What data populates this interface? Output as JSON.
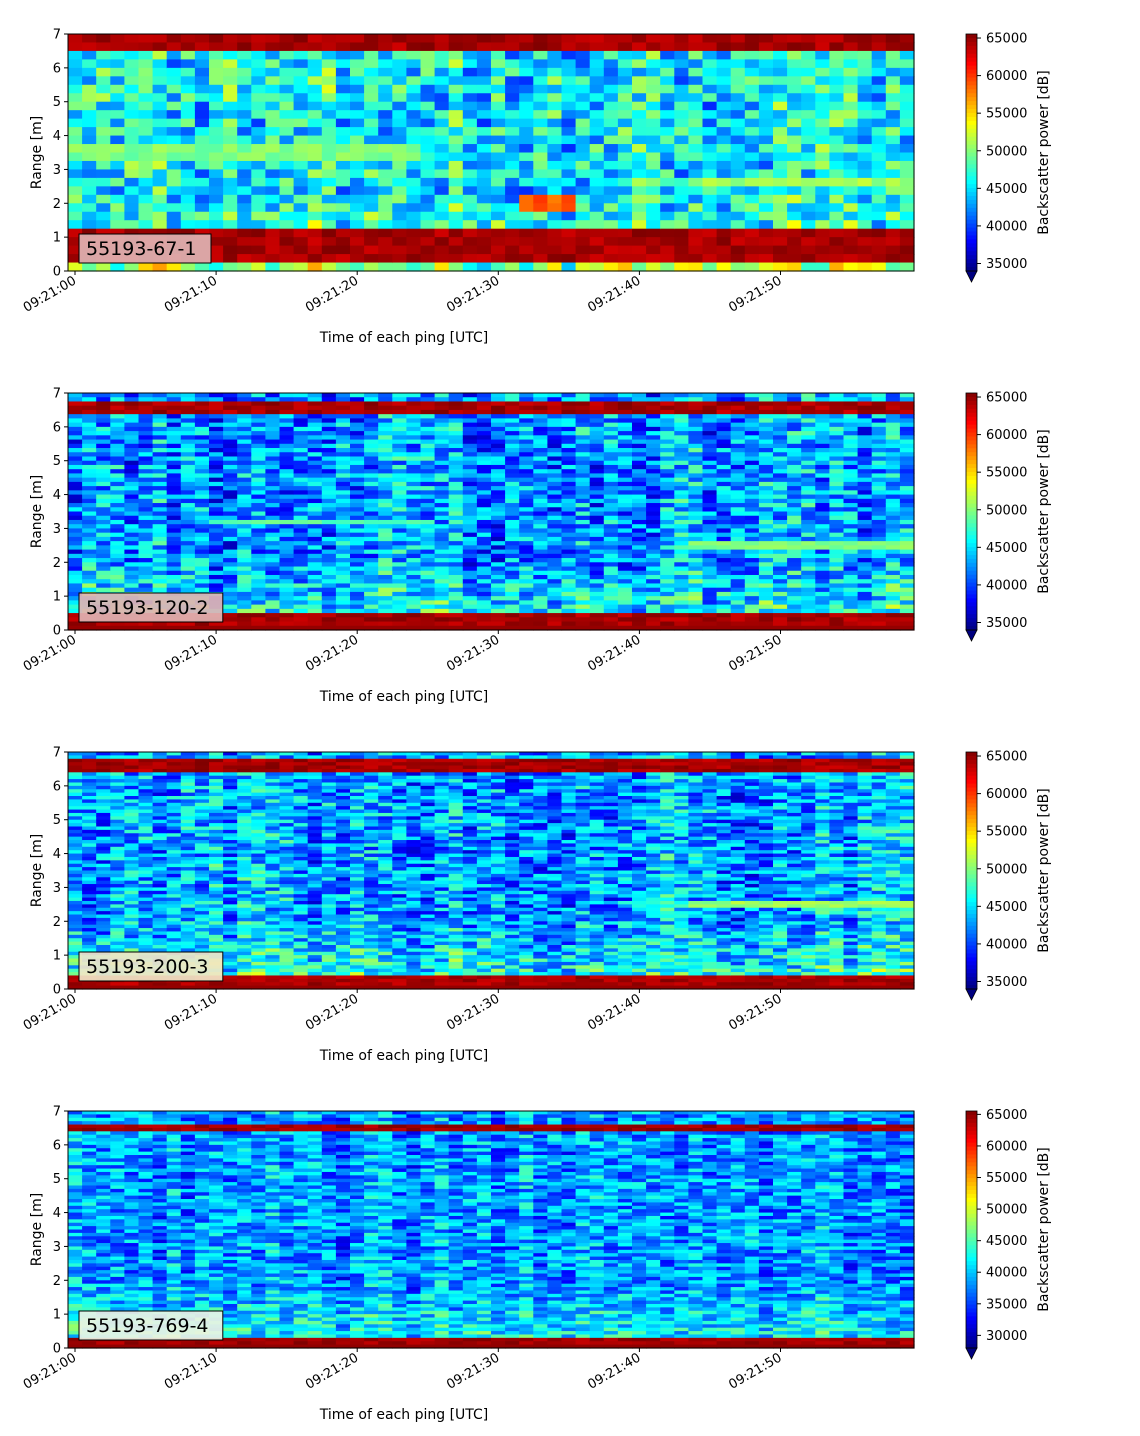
{
  "chart_data": [
    {
      "type": "heatmap",
      "panel_label": "55193-67-1",
      "xlabel": "Time of each ping [UTC]",
      "ylabel": "Range [m]",
      "colorbar_label": "Backscatter power [dB]",
      "x_ticks": [
        "09:21:00",
        "09:21:10",
        "09:21:20",
        "09:21:30",
        "09:21:40",
        "09:21:50"
      ],
      "x_range_seconds": [
        0,
        60
      ],
      "ylim": [
        0,
        7
      ],
      "y_ticks": [
        0,
        1,
        2,
        3,
        4,
        5,
        6,
        7
      ],
      "clim": [
        34000,
        65535
      ],
      "colorbar_ticks": [
        35000,
        40000,
        45000,
        50000,
        55000,
        60000,
        65000
      ],
      "colormap": "jet",
      "colorbar_extend": "min",
      "legend_bg": "#e0b3b3",
      "columns": 60,
      "rows": 28,
      "features": [
        {
          "y0": 0.2,
          "y1": 1.2,
          "value": 65535
        },
        {
          "y0": 1.2,
          "y1": 1.35,
          "value": 60000
        },
        {
          "y0": 6.5,
          "y1": 7.0,
          "value": 65535
        },
        {
          "y0": 3.3,
          "y1": 3.7,
          "t0": 0,
          "t1": 25,
          "value": 51000
        },
        {
          "y0": 2.4,
          "y1": 2.8,
          "t0": 44,
          "t1": 60,
          "value": 52000
        },
        {
          "y0": 1.8,
          "y1": 2.2,
          "t0": 32,
          "t1": 36,
          "value": 60000
        }
      ]
    },
    {
      "type": "heatmap",
      "panel_label": "55193-120-2",
      "xlabel": "Time of each ping [UTC]",
      "ylabel": "Range [m]",
      "colorbar_label": "Backscatter power [dB]",
      "x_ticks": [
        "09:21:00",
        "09:21:10",
        "09:21:20",
        "09:21:30",
        "09:21:40",
        "09:21:50"
      ],
      "x_range_seconds": [
        0,
        60
      ],
      "ylim": [
        0,
        7
      ],
      "y_ticks": [
        0,
        1,
        2,
        3,
        4,
        5,
        6,
        7
      ],
      "clim": [
        34000,
        65535
      ],
      "colorbar_ticks": [
        35000,
        40000,
        45000,
        50000,
        55000,
        60000,
        65000
      ],
      "colormap": "jet",
      "colorbar_extend": "min",
      "legend_bg": "#e0b3b3",
      "columns": 60,
      "rows": 56,
      "features": [
        {
          "y0": 0.1,
          "y1": 0.55,
          "value": 65535
        },
        {
          "y0": 6.4,
          "y1": 6.8,
          "value": 65535
        },
        {
          "y0": 3.1,
          "y1": 3.3,
          "t0": 10,
          "t1": 25,
          "value": 50000
        },
        {
          "y0": 2.4,
          "y1": 2.6,
          "t0": 44,
          "t1": 60,
          "value": 51000
        }
      ]
    },
    {
      "type": "heatmap",
      "panel_label": "55193-200-3",
      "xlabel": "Time of each ping [UTC]",
      "ylabel": "Range [m]",
      "colorbar_label": "Backscatter power [dB]",
      "x_ticks": [
        "09:21:00",
        "09:21:10",
        "09:21:20",
        "09:21:30",
        "09:21:40",
        "09:21:50"
      ],
      "x_range_seconds": [
        0,
        60
      ],
      "ylim": [
        0,
        7
      ],
      "y_ticks": [
        0,
        1,
        2,
        3,
        4,
        5,
        6,
        7
      ],
      "clim": [
        34000,
        65535
      ],
      "colorbar_ticks": [
        35000,
        40000,
        45000,
        50000,
        55000,
        60000,
        65000
      ],
      "colormap": "jet",
      "colorbar_extend": "min",
      "legend_bg": "#f0e6c8",
      "columns": 60,
      "rows": 70,
      "features": [
        {
          "y0": 0.1,
          "y1": 0.45,
          "value": 65535
        },
        {
          "y0": 6.4,
          "y1": 6.75,
          "value": 65535
        },
        {
          "y0": 2.4,
          "y1": 2.6,
          "t0": 44,
          "t1": 60,
          "value": 52000
        }
      ]
    },
    {
      "type": "heatmap",
      "panel_label": "55193-769-4",
      "xlabel": "Time of each ping [UTC]",
      "ylabel": "Range [m]",
      "colorbar_label": "Backscatter power [dB]",
      "x_ticks": [
        "09:21:00",
        "09:21:10",
        "09:21:20",
        "09:21:30",
        "09:21:40",
        "09:21:50"
      ],
      "x_range_seconds": [
        0,
        60
      ],
      "ylim": [
        0,
        7
      ],
      "y_ticks": [
        0,
        1,
        2,
        3,
        4,
        5,
        6,
        7
      ],
      "clim": [
        28000,
        65535
      ],
      "colorbar_ticks": [
        30000,
        35000,
        40000,
        45000,
        50000,
        55000,
        60000,
        65000
      ],
      "colormap": "jet",
      "colorbar_extend": "min",
      "legend_bg": "#eaf3e4",
      "columns": 60,
      "rows": 70,
      "features": [
        {
          "y0": 0.1,
          "y1": 0.35,
          "value": 65535
        },
        {
          "y0": 6.4,
          "y1": 6.6,
          "value": 65535
        }
      ]
    }
  ]
}
